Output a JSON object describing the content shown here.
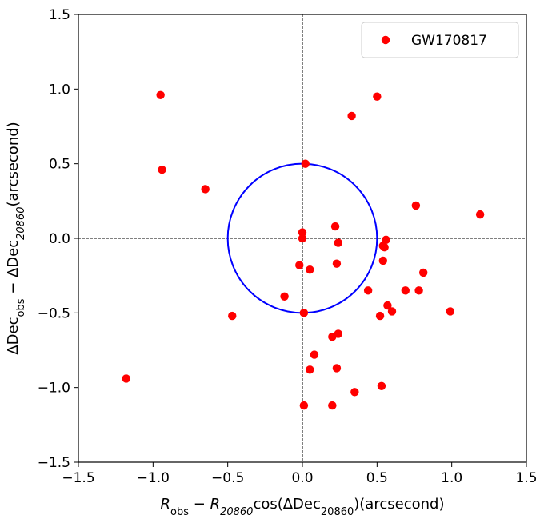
{
  "chart_data": {
    "type": "scatter",
    "xlabel": {
      "parts": [
        {
          "text": "R",
          "style": "italic"
        },
        {
          "text": "obs",
          "style": "sub"
        },
        {
          "text": " − ",
          "style": "normal"
        },
        {
          "text": "R",
          "style": "italic"
        },
        {
          "text": "20860",
          "style": "subitalic"
        },
        {
          "text": "cos(ΔDec",
          "style": "normal"
        },
        {
          "text": "20860",
          "style": "sub"
        },
        {
          "text": ")(arcsecond)",
          "style": "normal"
        }
      ]
    },
    "ylabel": {
      "parts": [
        {
          "text": "ΔDec",
          "style": "normal"
        },
        {
          "text": "obs",
          "style": "sub"
        },
        {
          "text": " − ΔDec",
          "style": "normal"
        },
        {
          "text": "20860",
          "style": "subitalic"
        },
        {
          "text": "(arcsecond)",
          "style": "normal"
        }
      ]
    },
    "xlim": [
      -1.5,
      1.5
    ],
    "ylim": [
      -1.5,
      1.5
    ],
    "xticks": [
      "−1.5",
      "−1.0",
      "−0.5",
      "0.0",
      "0.5",
      "1.0",
      "1.5"
    ],
    "yticks": [
      "−1.5",
      "−1.0",
      "−0.5",
      "0.0",
      "0.5",
      "1.0",
      "1.5"
    ],
    "xtick_values": [
      -1.5,
      -1.0,
      -0.5,
      0.0,
      0.5,
      1.0,
      1.5
    ],
    "ytick_values": [
      -1.5,
      -1.0,
      -0.5,
      0.0,
      0.5,
      1.0,
      1.5
    ],
    "grid": false,
    "legend_position": "top-right",
    "reference_lines": {
      "x": 0.0,
      "y": 0.0,
      "style": "dashed",
      "color": "#000000"
    },
    "circle": {
      "center_x": 0.0,
      "center_y": 0.0,
      "radius": 0.5,
      "color": "#0000ff"
    },
    "series": [
      {
        "name": "GW170817",
        "color": "#ff0000",
        "points": [
          [
            -0.95,
            0.96
          ],
          [
            -0.94,
            0.46
          ],
          [
            -0.65,
            0.33
          ],
          [
            0.5,
            0.95
          ],
          [
            0.33,
            0.82
          ],
          [
            0.02,
            0.5
          ],
          [
            0.76,
            0.22
          ],
          [
            1.19,
            0.16
          ],
          [
            0.0,
            0.04
          ],
          [
            0.22,
            0.08
          ],
          [
            0.0,
            0.0
          ],
          [
            0.24,
            -0.03
          ],
          [
            0.56,
            -0.01
          ],
          [
            0.54,
            -0.05
          ],
          [
            0.55,
            -0.06
          ],
          [
            0.54,
            -0.15
          ],
          [
            0.23,
            -0.17
          ],
          [
            -0.02,
            -0.18
          ],
          [
            0.05,
            -0.21
          ],
          [
            0.81,
            -0.23
          ],
          [
            0.44,
            -0.35
          ],
          [
            0.69,
            -0.35
          ],
          [
            0.78,
            -0.35
          ],
          [
            -0.12,
            -0.39
          ],
          [
            0.57,
            -0.45
          ],
          [
            0.6,
            -0.49
          ],
          [
            0.52,
            -0.52
          ],
          [
            0.99,
            -0.49
          ],
          [
            0.01,
            -0.5
          ],
          [
            -0.47,
            -0.52
          ],
          [
            0.24,
            -0.64
          ],
          [
            0.2,
            -0.66
          ],
          [
            0.08,
            -0.78
          ],
          [
            0.05,
            -0.88
          ],
          [
            0.23,
            -0.87
          ],
          [
            -1.18,
            -0.94
          ],
          [
            0.53,
            -0.99
          ],
          [
            0.35,
            -1.03
          ],
          [
            0.01,
            -1.12
          ],
          [
            0.2,
            -1.12
          ]
        ]
      }
    ]
  }
}
